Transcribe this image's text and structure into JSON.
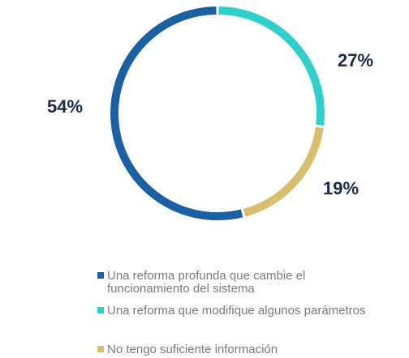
{
  "chart_data": {
    "type": "pie",
    "categories": [
      "Una reforma profunda que cambie el funcionamiento del sistema",
      "Una reforma que modifique algunos parámetros",
      "No tengo suficiente información"
    ],
    "values": [
      54,
      27,
      19
    ],
    "value_labels": [
      "54%",
      "27%",
      "19%"
    ],
    "colors": [
      "#1b60a2",
      "#2fd0cc",
      "#d8bf70"
    ],
    "legend": "bottom"
  }
}
